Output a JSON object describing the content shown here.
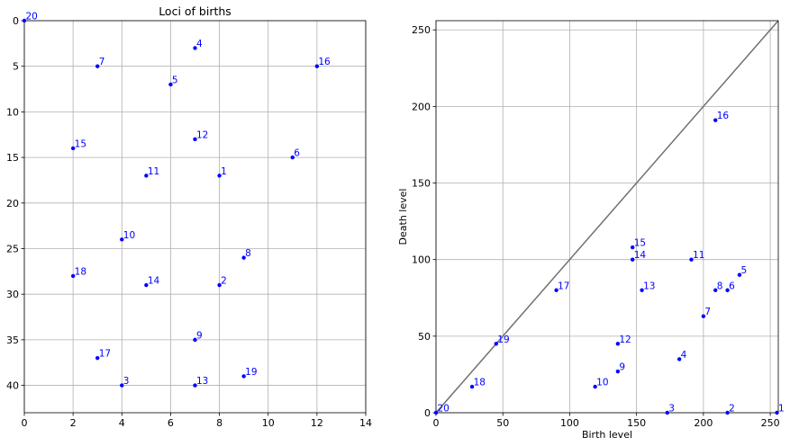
{
  "chart_data": [
    {
      "type": "scatter",
      "title": "Loci of births",
      "xlabel": "",
      "ylabel": "",
      "xlim": [
        0,
        14
      ],
      "ylim": [
        43,
        0
      ],
      "xticks": [
        "0",
        "2",
        "4",
        "6",
        "8",
        "10",
        "12",
        "14"
      ],
      "yticks": [
        "0",
        "5",
        "10",
        "15",
        "20",
        "25",
        "30",
        "35",
        "40"
      ],
      "grid": true,
      "y_inverted": true,
      "color": "#0000ff",
      "points": [
        {
          "label": "20",
          "x": 0,
          "y": 0
        },
        {
          "label": "4",
          "x": 7,
          "y": 3
        },
        {
          "label": "7",
          "x": 3,
          "y": 5
        },
        {
          "label": "16",
          "x": 12,
          "y": 5
        },
        {
          "label": "5",
          "x": 6,
          "y": 7
        },
        {
          "label": "12",
          "x": 7,
          "y": 13
        },
        {
          "label": "15",
          "x": 2,
          "y": 14
        },
        {
          "label": "6",
          "x": 11,
          "y": 15
        },
        {
          "label": "11",
          "x": 5,
          "y": 17
        },
        {
          "label": "1",
          "x": 8,
          "y": 17
        },
        {
          "label": "10",
          "x": 4,
          "y": 24
        },
        {
          "label": "8",
          "x": 9,
          "y": 26
        },
        {
          "label": "18",
          "x": 2,
          "y": 28
        },
        {
          "label": "14",
          "x": 5,
          "y": 29
        },
        {
          "label": "2",
          "x": 8,
          "y": 29
        },
        {
          "label": "9",
          "x": 7,
          "y": 35
        },
        {
          "label": "17",
          "x": 3,
          "y": 37
        },
        {
          "label": "19",
          "x": 9,
          "y": 39
        },
        {
          "label": "3",
          "x": 4,
          "y": 40
        },
        {
          "label": "13",
          "x": 7,
          "y": 40
        }
      ]
    },
    {
      "type": "scatter",
      "title": "",
      "xlabel": "Birth level",
      "ylabel": "Death level",
      "xlim": [
        0,
        256
      ],
      "ylim": [
        0,
        256
      ],
      "xticks": [
        "0",
        "50",
        "100",
        "150",
        "200",
        "250"
      ],
      "yticks": [
        "0",
        "50",
        "100",
        "150",
        "200",
        "250"
      ],
      "grid": true,
      "diagonal": true,
      "diagonal_color": "#707070",
      "color": "#0000ff",
      "points": [
        {
          "label": "20",
          "x": 0,
          "y": 0
        },
        {
          "label": "18",
          "x": 27,
          "y": 17
        },
        {
          "label": "19",
          "x": 45,
          "y": 45
        },
        {
          "label": "17",
          "x": 90,
          "y": 80
        },
        {
          "label": "10",
          "x": 119,
          "y": 17
        },
        {
          "label": "9",
          "x": 136,
          "y": 27
        },
        {
          "label": "12",
          "x": 136,
          "y": 45
        },
        {
          "label": "15",
          "x": 147,
          "y": 108
        },
        {
          "label": "14",
          "x": 147,
          "y": 100
        },
        {
          "label": "13",
          "x": 154,
          "y": 80
        },
        {
          "label": "3",
          "x": 173,
          "y": 0
        },
        {
          "label": "4",
          "x": 182,
          "y": 35
        },
        {
          "label": "11",
          "x": 191,
          "y": 100
        },
        {
          "label": "7",
          "x": 200,
          "y": 63
        },
        {
          "label": "16",
          "x": 209,
          "y": 191
        },
        {
          "label": "8",
          "x": 209,
          "y": 80
        },
        {
          "label": "2",
          "x": 218,
          "y": 0
        },
        {
          "label": "6",
          "x": 218,
          "y": 80
        },
        {
          "label": "5",
          "x": 227,
          "y": 90
        },
        {
          "label": "1",
          "x": 255,
          "y": 0
        }
      ]
    }
  ]
}
